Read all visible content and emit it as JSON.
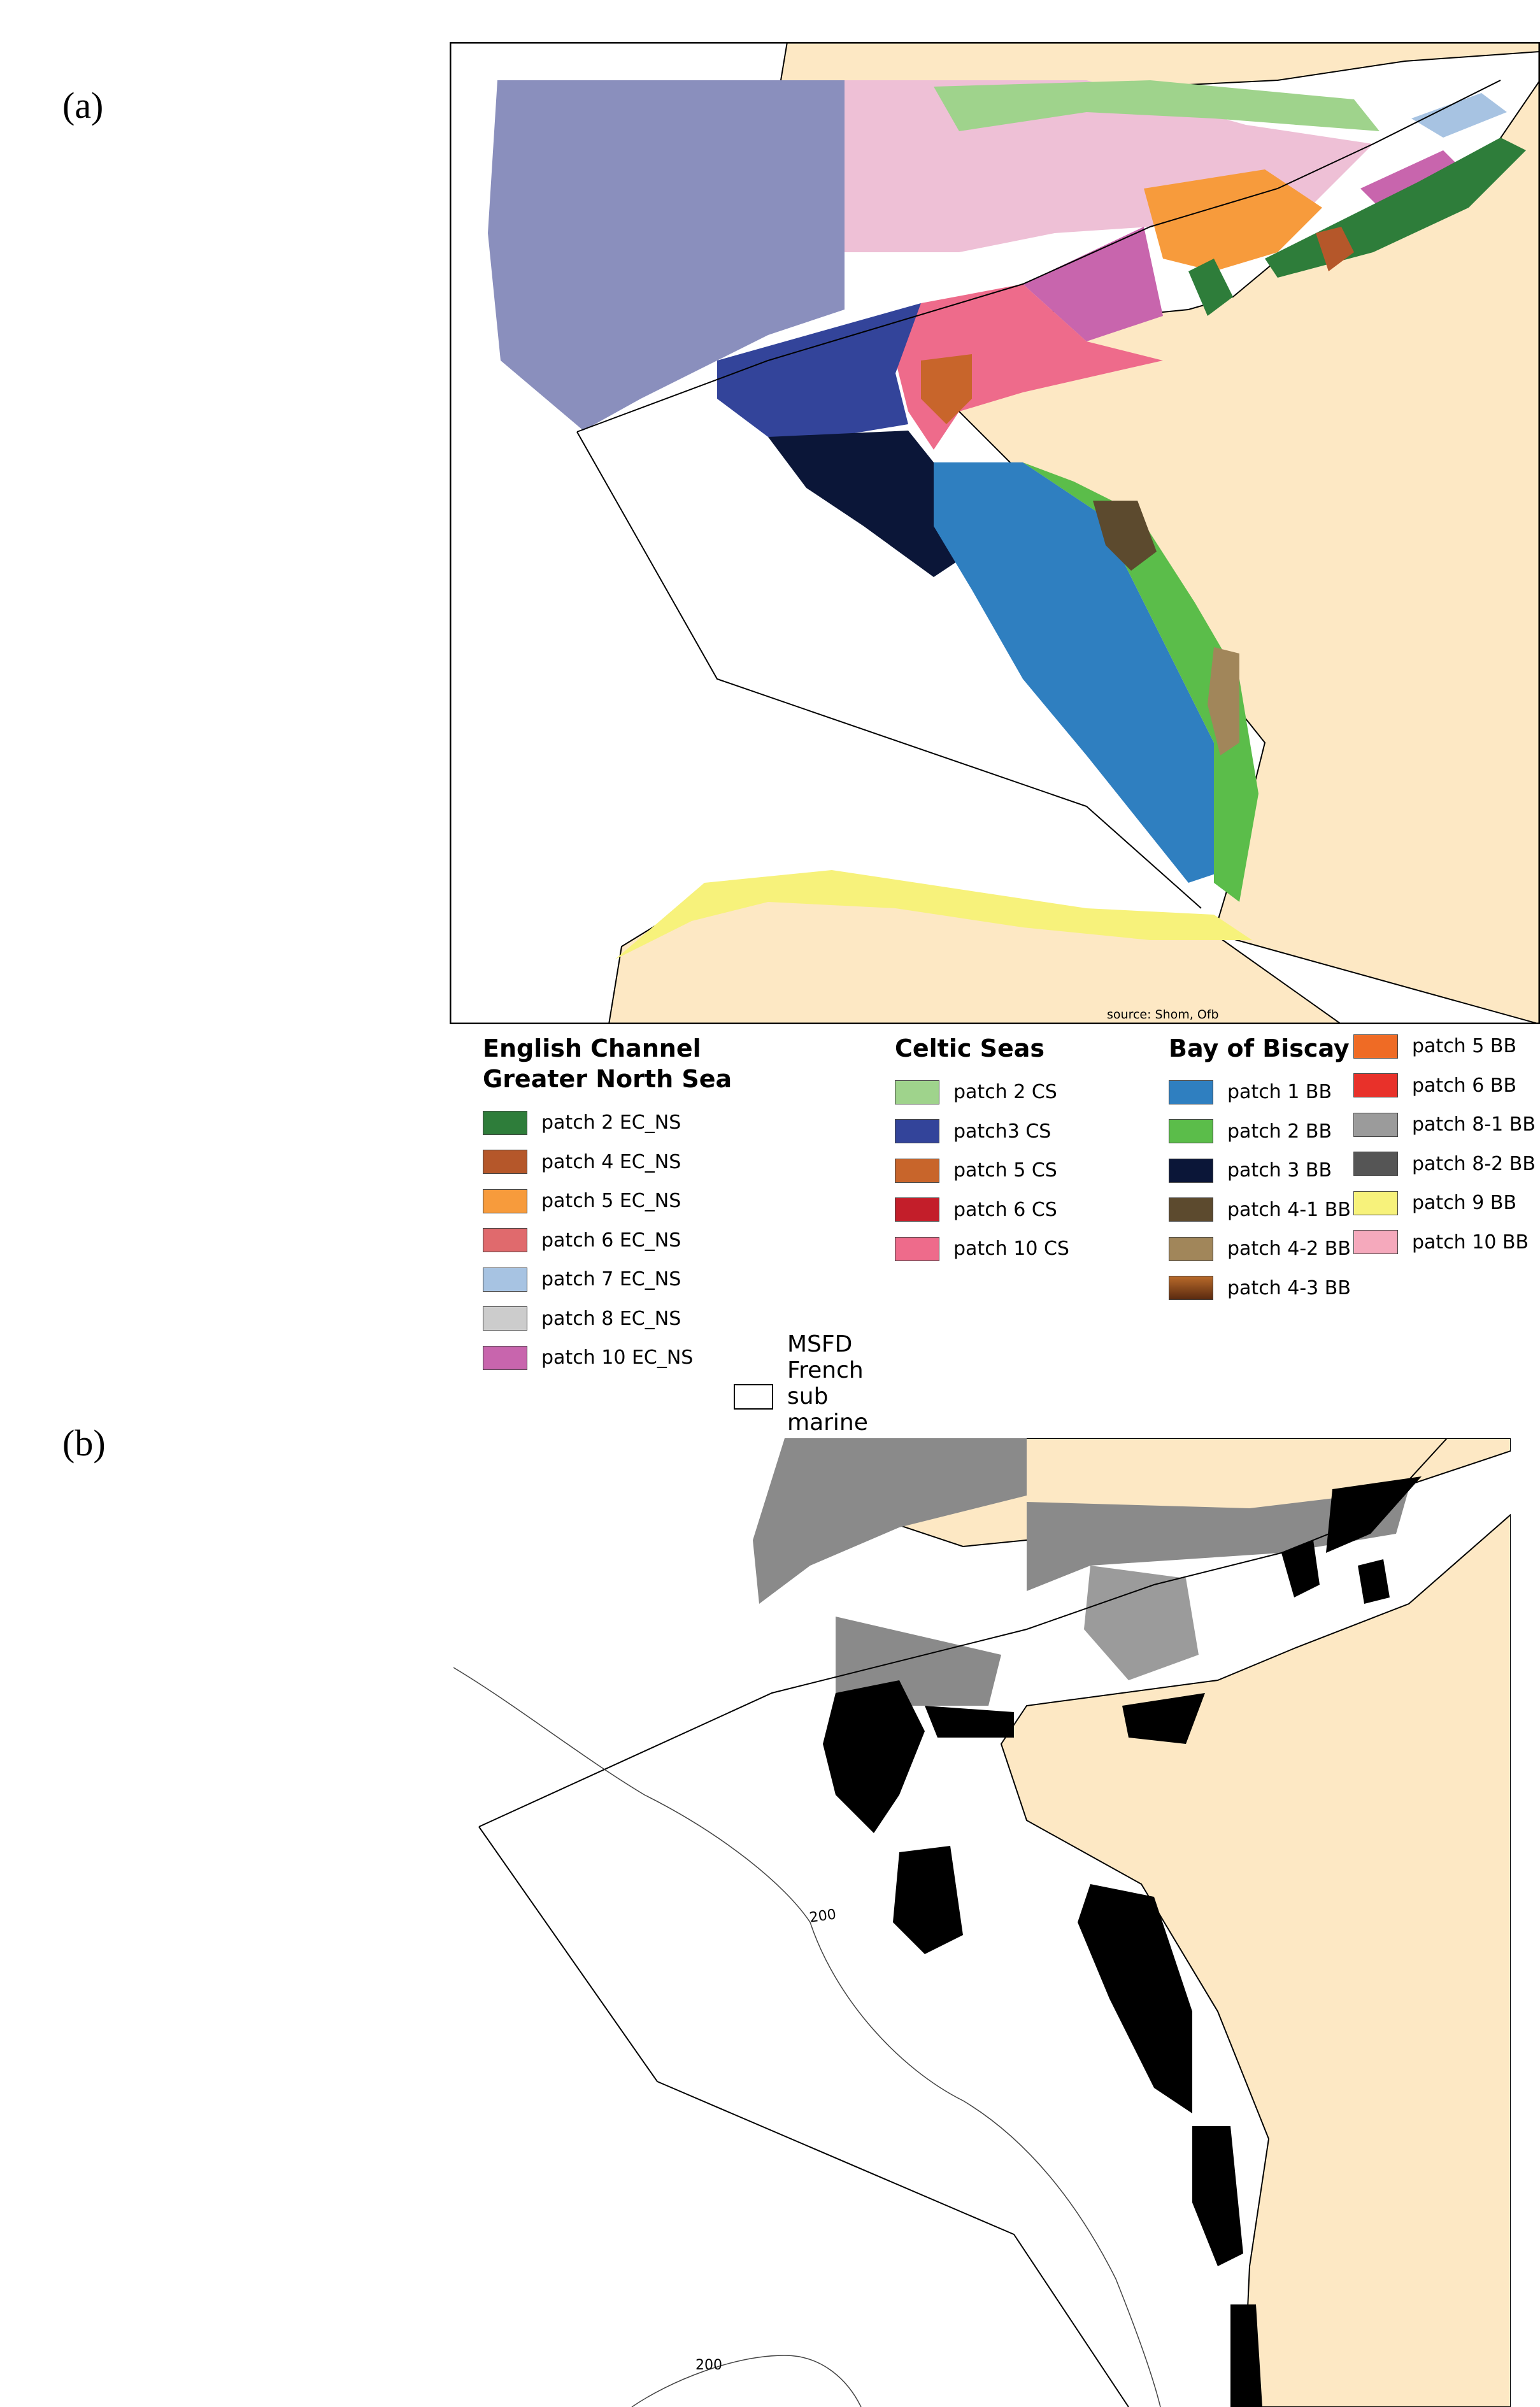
{
  "panels": {
    "a_label": "(a)",
    "b_label": "(b)"
  },
  "map_a": {
    "source": "source: Shom, Ofb"
  },
  "map_b": {
    "contour_labels": [
      "200",
      "200"
    ]
  },
  "legend": {
    "groups": [
      {
        "title_lines": [
          "English Channel",
          "Greater North Sea"
        ],
        "items": [
          {
            "label": "patch 2 EC_NS",
            "color": "#2e7d3a"
          },
          {
            "label": "patch 4 EC_NS",
            "color": "#b5572a"
          },
          {
            "label": "patch 5 EC_NS",
            "color": "#f79b3c"
          },
          {
            "label": "patch 6 EC_NS",
            "color": "#e06a6d"
          },
          {
            "label": "patch 7 EC_NS",
            "color": "#a7c3e2"
          },
          {
            "label": "patch 8 EC_NS",
            "color": "#cccccc"
          },
          {
            "label": "patch 10 EC_NS",
            "color": "#c865ad"
          }
        ]
      },
      {
        "title_lines": [
          "Celtic Seas"
        ],
        "items": [
          {
            "label": "patch 2 CS",
            "color": "#9fd38c"
          },
          {
            "label": "patch3 CS",
            "color": "#33449a"
          },
          {
            "label": "patch 5 CS",
            "color": "#c8652b"
          },
          {
            "label": "patch 6 CS",
            "color": "#c31e2a"
          },
          {
            "label": "patch 10 CS",
            "color": "#ee6b8b"
          }
        ]
      },
      {
        "title_lines": [
          "Bay of Biscay"
        ],
        "items": [
          {
            "label": "patch 1 BB",
            "color": "#2f7fc0"
          },
          {
            "label": "patch 2 BB",
            "color": "#5bbd4a"
          },
          {
            "label": "patch 3 BB",
            "color": "#0b1638"
          },
          {
            "label": "patch 4-1 BB",
            "color": "#5c4a2e"
          },
          {
            "label": "patch 4-2 BB",
            "color": "#a1865a"
          },
          {
            "label": "patch 4-3 BB",
            "color": "#8a3f1a"
          }
        ]
      },
      {
        "title_lines": [],
        "items": [
          {
            "label": "patch 5 BB",
            "color": "#ef6b25"
          },
          {
            "label": "patch 6 BB",
            "color": "#e8312a"
          },
          {
            "label": "patch 8-1 BB",
            "color": "#9b9b9b"
          },
          {
            "label": "patch 8-2 BB",
            "color": "#555555"
          },
          {
            "label": "patch 9 BB",
            "color": "#f7f27b"
          },
          {
            "label": "patch 10 BB",
            "color": "#f5a9bc"
          }
        ]
      }
    ],
    "msfd_label": "MSFD French sub marine region"
  },
  "colors": {
    "land": "#fde8c4",
    "celtic_shelf": "#8a8fbd",
    "pink_shelf": "#eec0d6"
  }
}
